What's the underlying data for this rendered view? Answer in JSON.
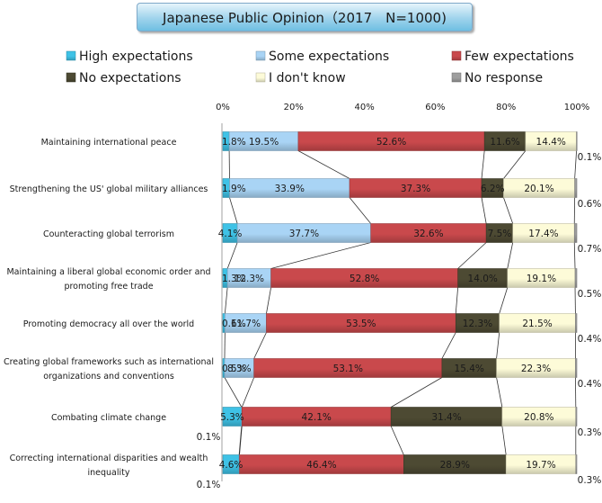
{
  "chart_data": {
    "type": "bar",
    "orientation": "horizontal",
    "stacked": true,
    "percent": true,
    "title": "Japanese Public Opinion（2017　N=1000)",
    "xlim": [
      0,
      100
    ],
    "tick_labels": [
      "0%",
      "20%",
      "40%",
      "60%",
      "80%",
      "100%"
    ],
    "legend_position": "top",
    "categories": [
      "Maintaining international peace",
      "Strengthening the US' global military alliances",
      "Counteracting global terrorism",
      "Maintaining a liberal global economic order and promoting free trade",
      "Promoting democracy all over the world",
      "Creating global frameworks such as international organizations and conventions",
      "Combating climate change",
      "Correcting international disparities and wealth inequality"
    ],
    "category_lines": [
      [
        "Maintaining international peace"
      ],
      [
        "Strengthening the US' global military alliances"
      ],
      [
        "Counteracting global terrorism"
      ],
      [
        "Maintaining a liberal global economic order and",
        "promoting free trade"
      ],
      [
        "Promoting democracy all over the world"
      ],
      [
        "Creating global frameworks such as international",
        "organizations and conventions"
      ],
      [
        "Combating climate change"
      ],
      [
        "Correcting international disparities and wealth",
        "inequality"
      ]
    ],
    "series": [
      {
        "name": "High expectations",
        "color": "#3fc2e6",
        "values": [
          1.8,
          1.9,
          4.1,
          1.3,
          0.6,
          0.5,
          5.3,
          4.6
        ]
      },
      {
        "name": "Some expectations",
        "color": "#a9d4f5",
        "values": [
          19.5,
          33.9,
          37.7,
          12.3,
          11.7,
          8.3,
          0.1,
          0.1
        ]
      },
      {
        "name": "Few expectations",
        "color": "#c9494c",
        "values": [
          52.6,
          37.3,
          32.6,
          52.8,
          53.5,
          53.1,
          42.1,
          46.4
        ]
      },
      {
        "name": "No expectations",
        "color": "#4d4a33",
        "values": [
          11.6,
          6.2,
          7.5,
          14.0,
          12.3,
          15.4,
          31.4,
          28.9
        ]
      },
      {
        "name": "I don't know",
        "color": "#fdfbd8",
        "values": [
          14.4,
          20.1,
          17.4,
          19.1,
          21.5,
          22.3,
          20.8,
          19.7
        ]
      },
      {
        "name": "No response",
        "color": "#9e9e9e",
        "values": [
          0.1,
          0.6,
          0.7,
          0.5,
          0.4,
          0.4,
          0.3,
          0.3
        ]
      }
    ],
    "value_labels": [
      [
        "1.8%",
        "19.5%",
        "52.6%",
        "11.6%",
        "14.4%",
        "0.1%"
      ],
      [
        "1.9%",
        "33.9%",
        "37.3%",
        "6.2%",
        "20.1%",
        "0.6%"
      ],
      [
        "4.1%",
        "37.7%",
        "32.6%",
        "7.5%",
        "17.4%",
        "0.7%"
      ],
      [
        "1.3%",
        "12.3%",
        "52.8%",
        "14.0%",
        "19.1%",
        "0.5%"
      ],
      [
        "0.6%",
        "11.7%",
        "53.5%",
        "12.3%",
        "21.5%",
        "0.4%"
      ],
      [
        "0.5%",
        "8.3%",
        "53.1%",
        "15.4%",
        "22.3%",
        "0.4%"
      ],
      [
        "5.3%",
        "0.1%",
        "42.1%",
        "31.4%",
        "20.8%",
        "0.3%"
      ],
      [
        "4.6%",
        "0.1%",
        "46.4%",
        "28.9%",
        "19.7%",
        "0.3%"
      ]
    ],
    "series_lines_between_bars": true,
    "grid": false
  }
}
